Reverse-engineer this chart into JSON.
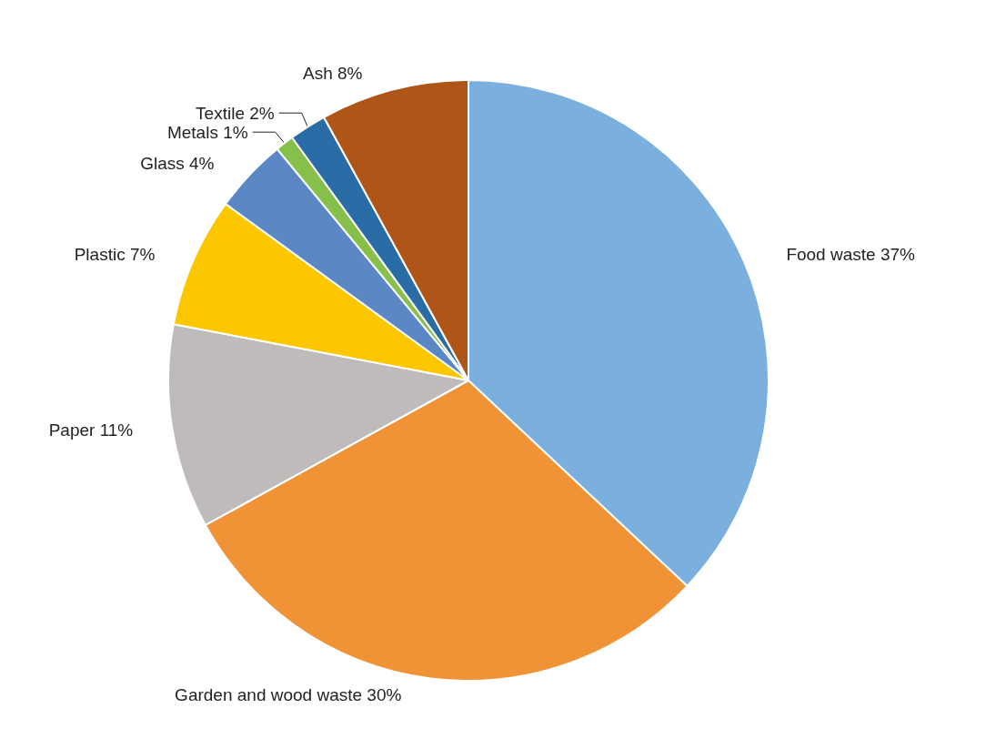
{
  "chart_data": {
    "type": "pie",
    "categories": [
      "Food waste",
      "Garden and wood waste",
      "Paper",
      "Plastic",
      "Glass",
      "Metals",
      "Textile",
      "Ash"
    ],
    "values": [
      37,
      30,
      11,
      7,
      4,
      1,
      2,
      8
    ],
    "value_labels": [
      "37%",
      "30%",
      "11%",
      "7%",
      "4%",
      "1%",
      "2%",
      "8%"
    ],
    "colors": [
      "#7aafde",
      "#f09336",
      "#bfbbba",
      "#fdc700",
      "#5b87c5",
      "#86bf4a",
      "#2a6ca6",
      "#b05518"
    ],
    "legend": false
  }
}
